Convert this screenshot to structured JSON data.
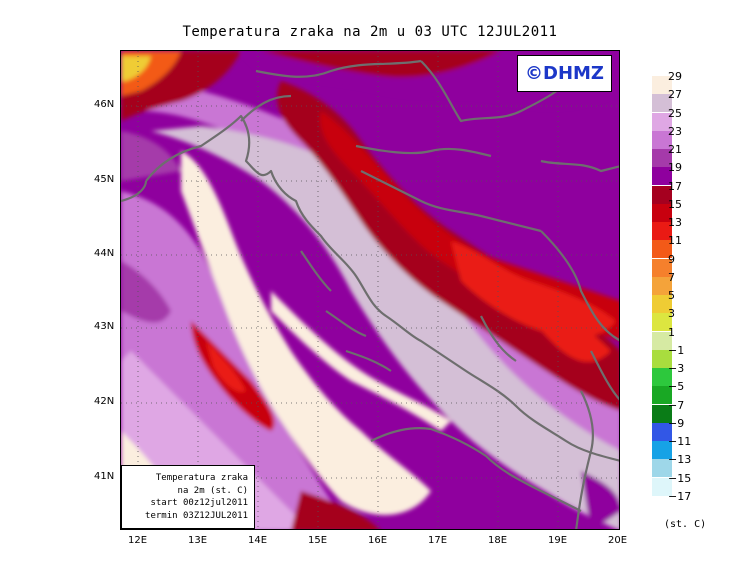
{
  "title": "Temperatura zraka na 2m u 03 UTC 12JUL2011",
  "logo_text": "©DHMZ",
  "info_box": {
    "line1": "Temperatura zraka",
    "line2": "na 2m (st. C)",
    "line3": "start 00z12jul2011",
    "line4": "termin 03Z12JUL2011"
  },
  "lat_labels": [
    "46N",
    "45N",
    "44N",
    "43N",
    "42N",
    "41N"
  ],
  "lon_labels": [
    "12E",
    "13E",
    "14E",
    "15E",
    "16E",
    "17E",
    "18E",
    "19E",
    "20E"
  ],
  "legend": {
    "labels": [
      "29",
      "27",
      "25",
      "23",
      "21",
      "19",
      "17",
      "15",
      "13",
      "11",
      "9",
      "7",
      "5",
      "3",
      "1",
      "−1",
      "−3",
      "−5",
      "−7",
      "−9",
      "−11",
      "−13",
      "−15",
      "−17"
    ],
    "colors": [
      "#fbeedf",
      "#d4bfd6",
      "#dfa7e4",
      "#c976d4",
      "#a53aaa",
      "#8f009e",
      "#a5001f",
      "#c8000f",
      "#ea1a14",
      "#f35a18",
      "#f5802c",
      "#f4a33a",
      "#efcc34",
      "#dce640",
      "#d6eaa3",
      "#a9dd3e",
      "#2dc83d",
      "#19a824",
      "#0a7c17",
      "#3257e6",
      "#16a2e6",
      "#9ed7e9",
      "#def6fa",
      "#ffffff"
    ],
    "unit": "(st. C)"
  }
}
